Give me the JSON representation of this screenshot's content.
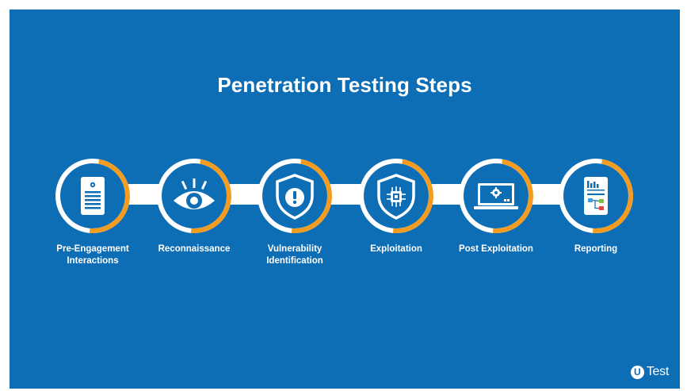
{
  "title": "Penetration Testing Steps",
  "colors": {
    "background": "#0e6eb5",
    "ring_white": "#ffffff",
    "ring_accent": "#f39c1f",
    "circle_fill": "#0e6eb5"
  },
  "steps": [
    {
      "label": "Pre-Engagement\nInteractions",
      "icon": "document-gear-icon"
    },
    {
      "label": "Reconnaissance",
      "icon": "eye-icon"
    },
    {
      "label": "Vulnerability\nIdentification",
      "icon": "shield-exclamation-icon"
    },
    {
      "label": "Exploitation",
      "icon": "shield-bug-icon"
    },
    {
      "label": "Post Exploitation",
      "icon": "laptop-gear-icon"
    },
    {
      "label": "Reporting",
      "icon": "report-chart-icon"
    }
  ],
  "logo": {
    "badge": "U",
    "text": "Test"
  }
}
